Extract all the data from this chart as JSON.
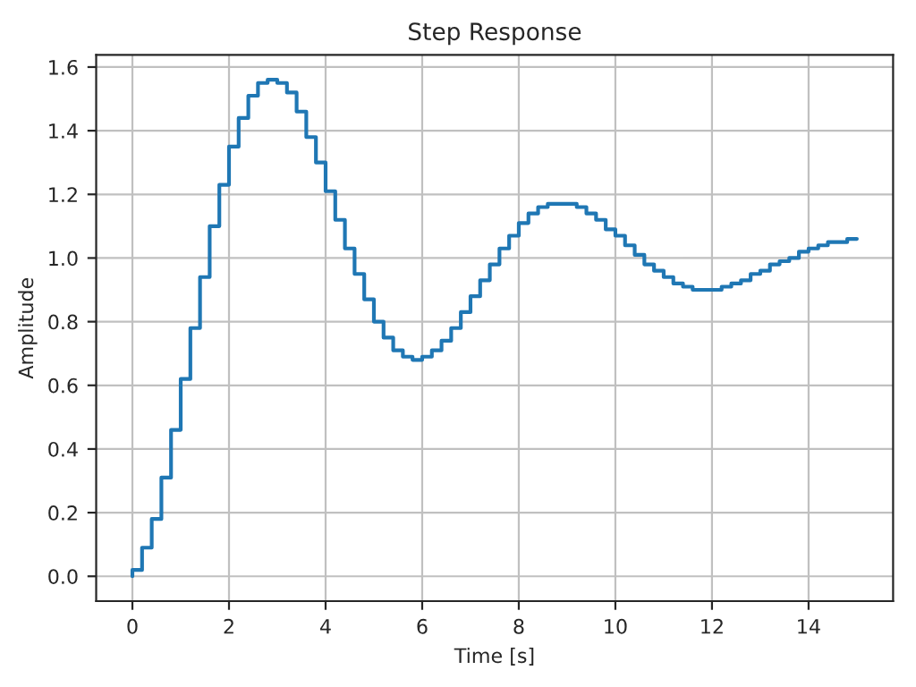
{
  "chart_data": {
    "type": "step",
    "title": "Step Response",
    "xlabel": "Time [s]",
    "ylabel": "Amplitude",
    "x": [
      0,
      0.2,
      0.4,
      0.6,
      0.8,
      1.0,
      1.2,
      1.4,
      1.6,
      1.8,
      2.0,
      2.2,
      2.4,
      2.6,
      2.8,
      3.0,
      3.2,
      3.4,
      3.6,
      3.8,
      4.0,
      4.2,
      4.4,
      4.6,
      4.8,
      5.0,
      5.2,
      5.4,
      5.6,
      5.8,
      6.0,
      6.2,
      6.4,
      6.6,
      6.8,
      7.0,
      7.2,
      7.4,
      7.6,
      7.8,
      8.0,
      8.2,
      8.4,
      8.6,
      8.8,
      9.0,
      9.2,
      9.4,
      9.6,
      9.8,
      10.0,
      10.2,
      10.4,
      10.6,
      10.8,
      11.0,
      11.2,
      11.4,
      11.6,
      11.8,
      12.0,
      12.2,
      12.4,
      12.6,
      12.8,
      13.0,
      13.2,
      13.4,
      13.6,
      13.8,
      14.0,
      14.2,
      14.4,
      14.6,
      14.8,
      15.0
    ],
    "series": [
      {
        "color": "#1f77b4",
        "values": [
          0,
          0.02,
          0.09,
          0.18,
          0.31,
          0.46,
          0.62,
          0.78,
          0.94,
          1.1,
          1.23,
          1.35,
          1.44,
          1.51,
          1.55,
          1.56,
          1.55,
          1.52,
          1.46,
          1.38,
          1.3,
          1.21,
          1.12,
          1.03,
          0.95,
          0.87,
          0.8,
          0.75,
          0.71,
          0.69,
          0.68,
          0.69,
          0.71,
          0.74,
          0.78,
          0.83,
          0.88,
          0.93,
          0.98,
          1.03,
          1.07,
          1.11,
          1.14,
          1.16,
          1.17,
          1.17,
          1.17,
          1.16,
          1.14,
          1.12,
          1.09,
          1.07,
          1.04,
          1.01,
          0.98,
          0.96,
          0.94,
          0.92,
          0.91,
          0.9,
          0.9,
          0.9,
          0.91,
          0.92,
          0.93,
          0.95,
          0.96,
          0.98,
          0.99,
          1.0,
          1.02,
          1.03,
          1.04,
          1.05,
          1.05,
          1.06
        ]
      }
    ],
    "xlim": [
      -0.75,
      15.75
    ],
    "ylim": [
      -0.078,
      1.638
    ],
    "xticks": [
      0,
      2,
      4,
      6,
      8,
      10,
      12,
      14
    ],
    "yticks": [
      {
        "value": 0,
        "label": "0.0"
      },
      {
        "value": 0.2,
        "label": "0.2"
      },
      {
        "value": 0.4,
        "label": "0.4"
      },
      {
        "value": 0.6,
        "label": "0.6"
      },
      {
        "value": 0.8,
        "label": "0.8"
      },
      {
        "value": 1.0,
        "label": "1.0"
      },
      {
        "value": 1.2,
        "label": "1.2"
      },
      {
        "value": 1.4,
        "label": "1.4"
      },
      {
        "value": 1.6,
        "label": "1.6"
      }
    ],
    "grid": true,
    "line_style": "solid",
    "marker": "none"
  }
}
